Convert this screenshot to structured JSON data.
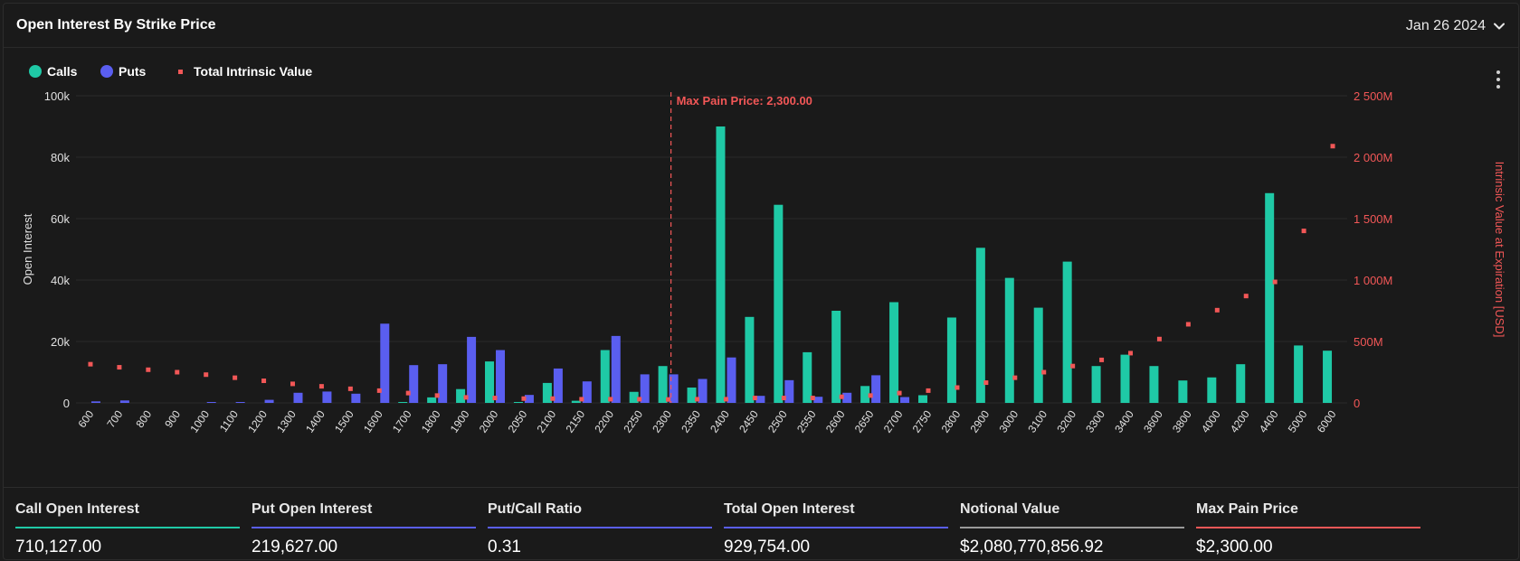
{
  "header": {
    "title": "Open Interest By Strike Price",
    "date": "Jan 26 2024"
  },
  "icons": {
    "dropdown": "chevron-down-icon",
    "menu": "more-vertical-icon"
  },
  "colors": {
    "calls": "#1fc9a6",
    "puts": "#5a5ef0",
    "intrinsic": "#f25757",
    "background": "#1a1a1a",
    "grid": "#2a2a2a"
  },
  "chart_data": {
    "type": "bar",
    "title": "Open Interest By Strike Price",
    "xlabel": "",
    "ylabel": "Open Interest",
    "y2label": "Intrinsic Value at Expiration [USD]",
    "ylim": [
      0,
      100000
    ],
    "y2lim": [
      0,
      2500000000
    ],
    "yticks": [
      "0",
      "20k",
      "40k",
      "60k",
      "80k",
      "100k"
    ],
    "y2ticks": [
      "0",
      "500M",
      "1 000M",
      "1 500M",
      "2 000M",
      "2 500M"
    ],
    "legend": [
      {
        "key": "calls",
        "label": "Calls"
      },
      {
        "key": "puts",
        "label": "Puts"
      },
      {
        "key": "intrinsic",
        "label": "Total Intrinsic Value"
      }
    ],
    "legend_position": "top-left",
    "annotation": {
      "label": "Max Pain Price: 2,300.00",
      "category": "2300"
    },
    "categories": [
      "600",
      "700",
      "800",
      "900",
      "1000",
      "1100",
      "1200",
      "1300",
      "1400",
      "1500",
      "1600",
      "1700",
      "1800",
      "1900",
      "2000",
      "2050",
      "2100",
      "2150",
      "2200",
      "2250",
      "2300",
      "2350",
      "2400",
      "2450",
      "2500",
      "2550",
      "2600",
      "2650",
      "2700",
      "2750",
      "2800",
      "2900",
      "3000",
      "3100",
      "3200",
      "3300",
      "3400",
      "3600",
      "3800",
      "4000",
      "4200",
      "4400",
      "5000",
      "6000"
    ],
    "series": [
      {
        "name": "Calls",
        "axis": "left",
        "values": [
          0,
          0,
          0,
          0,
          0,
          0,
          0,
          0,
          0,
          0,
          0,
          300,
          1800,
          4500,
          13500,
          300,
          6500,
          700,
          17200,
          3600,
          12000,
          5000,
          90000,
          28000,
          64500,
          16500,
          30000,
          5500,
          32800,
          2500,
          27800,
          50500,
          40700,
          31000,
          46000,
          12000,
          15700,
          12000,
          7300,
          8300,
          12600,
          68300,
          18700,
          17000
        ]
      },
      {
        "name": "Puts",
        "axis": "left",
        "values": [
          500,
          800,
          0,
          0,
          300,
          300,
          1000,
          3300,
          3700,
          3000,
          25800,
          12300,
          12600,
          21500,
          17200,
          2600,
          11200,
          7000,
          21800,
          9300,
          9300,
          7800,
          14800,
          2300,
          7400,
          2000,
          3300,
          9000,
          1900,
          0,
          0,
          0,
          0,
          0,
          0,
          0,
          0,
          0,
          0,
          0,
          0,
          0,
          0,
          0
        ]
      },
      {
        "name": "Total Intrinsic Value",
        "axis": "right",
        "type": "scatter",
        "values": [
          315000000,
          290000000,
          270000000,
          250000000,
          230000000,
          205000000,
          180000000,
          155000000,
          135000000,
          115000000,
          100000000,
          80000000,
          60000000,
          45000000,
          40000000,
          35000000,
          35000000,
          30000000,
          30000000,
          30000000,
          28000000,
          30000000,
          30000000,
          40000000,
          40000000,
          40000000,
          50000000,
          60000000,
          80000000,
          100000000,
          125000000,
          165000000,
          205000000,
          250000000,
          300000000,
          350000000,
          405000000,
          520000000,
          640000000,
          755000000,
          870000000,
          985000000,
          1400000000,
          2090000000
        ]
      }
    ]
  },
  "stats": [
    {
      "label": "Call Open Interest",
      "value": "710,127.00",
      "color": "#1fc9a6"
    },
    {
      "label": "Put Open Interest",
      "value": "219,627.00",
      "color": "#5a5ef0"
    },
    {
      "label": "Put/Call Ratio",
      "value": "0.31",
      "color": "#5a5ef0"
    },
    {
      "label": "Total Open Interest",
      "value": "929,754.00",
      "color": "#5a5ef0"
    },
    {
      "label": "Notional Value",
      "value": "$2,080,770,856.92",
      "color": "#9a9a9a"
    },
    {
      "label": "Max Pain Price",
      "value": "$2,300.00",
      "color": "#f25757"
    }
  ]
}
